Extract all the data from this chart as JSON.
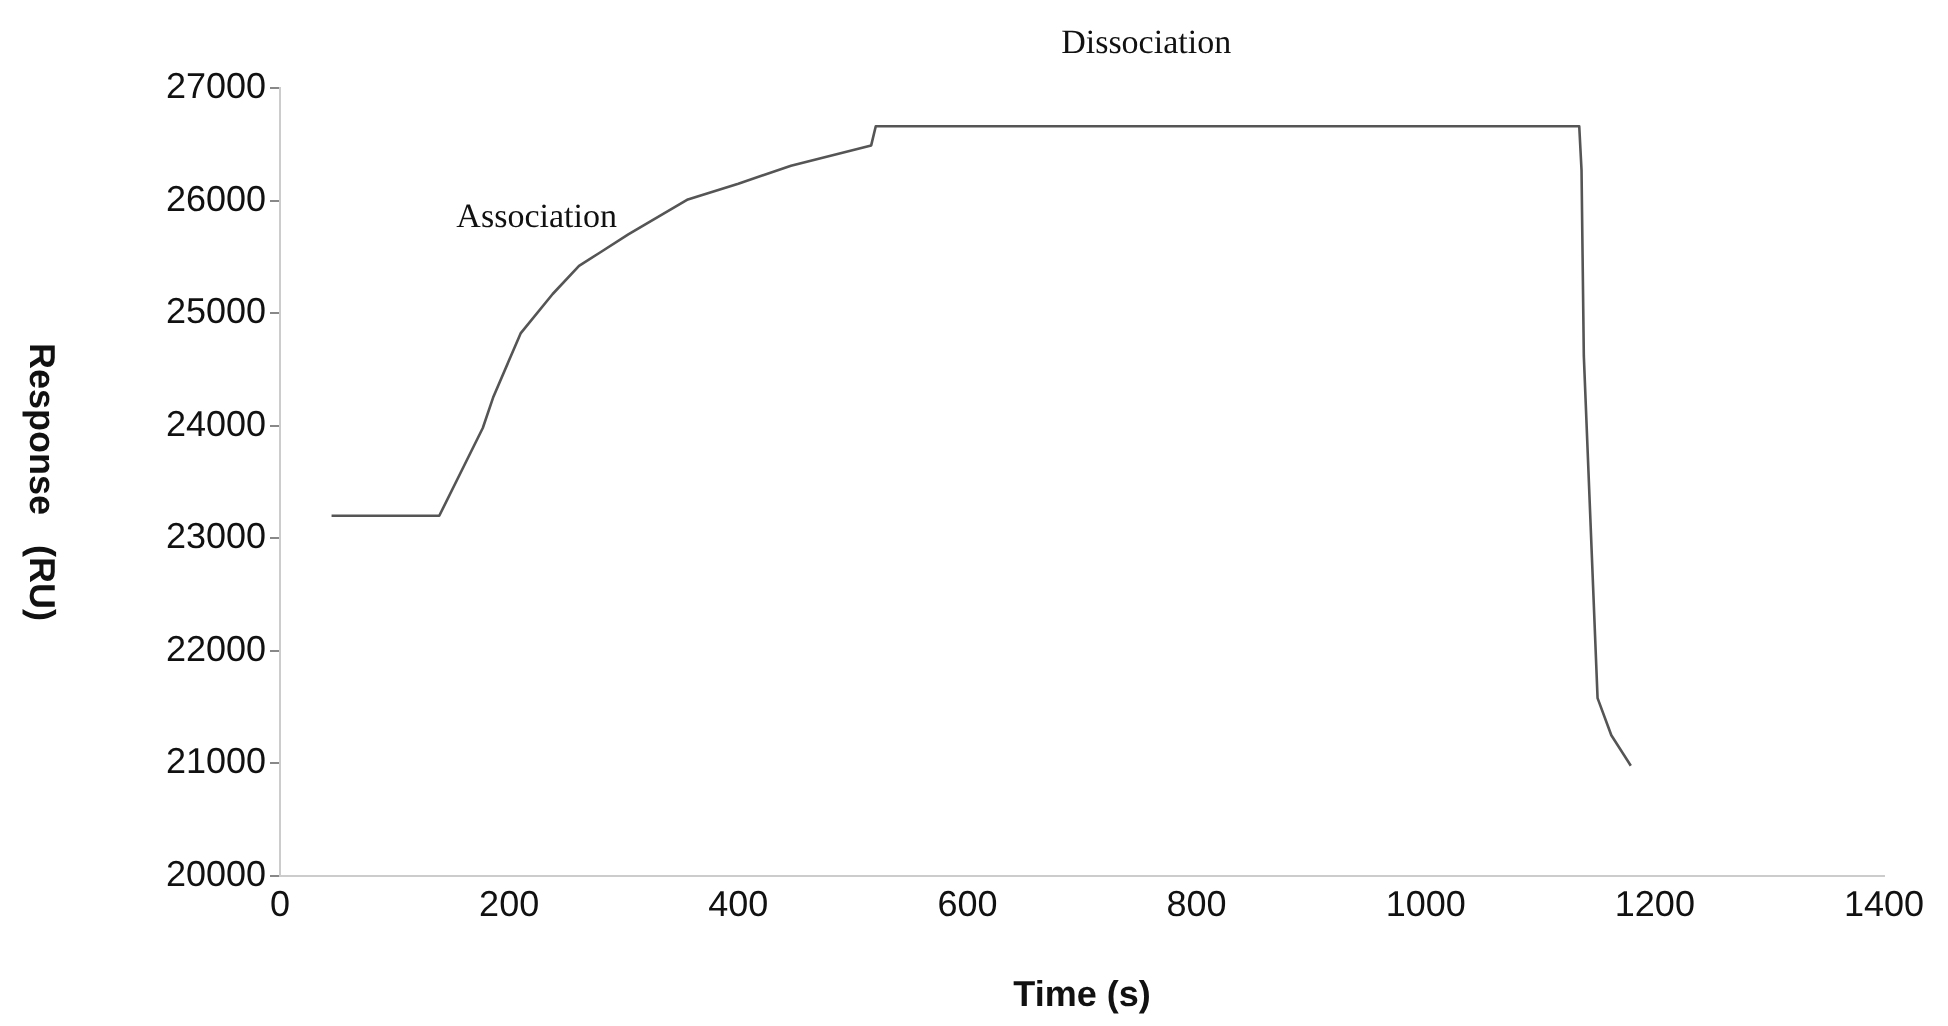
{
  "chart_data": {
    "type": "line",
    "xlabel": "Time (s)",
    "ylabel": "Response   (RU)",
    "annotations": [
      "Association",
      "Dissociation"
    ],
    "series": [
      {
        "color": "#555555",
        "x": [
          45,
          139,
          177,
          186,
          210,
          238,
          261,
          278,
          304,
          356,
          400,
          446,
          516,
          520,
          1134,
          1136,
          1138,
          1150,
          1162,
          1179
        ],
        "values": [
          23200,
          23200,
          23980,
          24250,
          24820,
          25170,
          25420,
          25530,
          25700,
          26010,
          26150,
          26310,
          26490,
          26660,
          26660,
          26270,
          24620,
          21580,
          21250,
          20980
        ]
      }
    ],
    "xlim": [
      0,
      1400
    ],
    "xticks": [
      0,
      200,
      400,
      600,
      800,
      1000,
      1200,
      1400
    ],
    "ylim": [
      20000,
      27000
    ],
    "yticks": [
      20000,
      21000,
      22000,
      23000,
      24000,
      25000,
      26000,
      27000
    ],
    "grid": false,
    "legend": false,
    "marker": "none",
    "line_style": "solid"
  }
}
